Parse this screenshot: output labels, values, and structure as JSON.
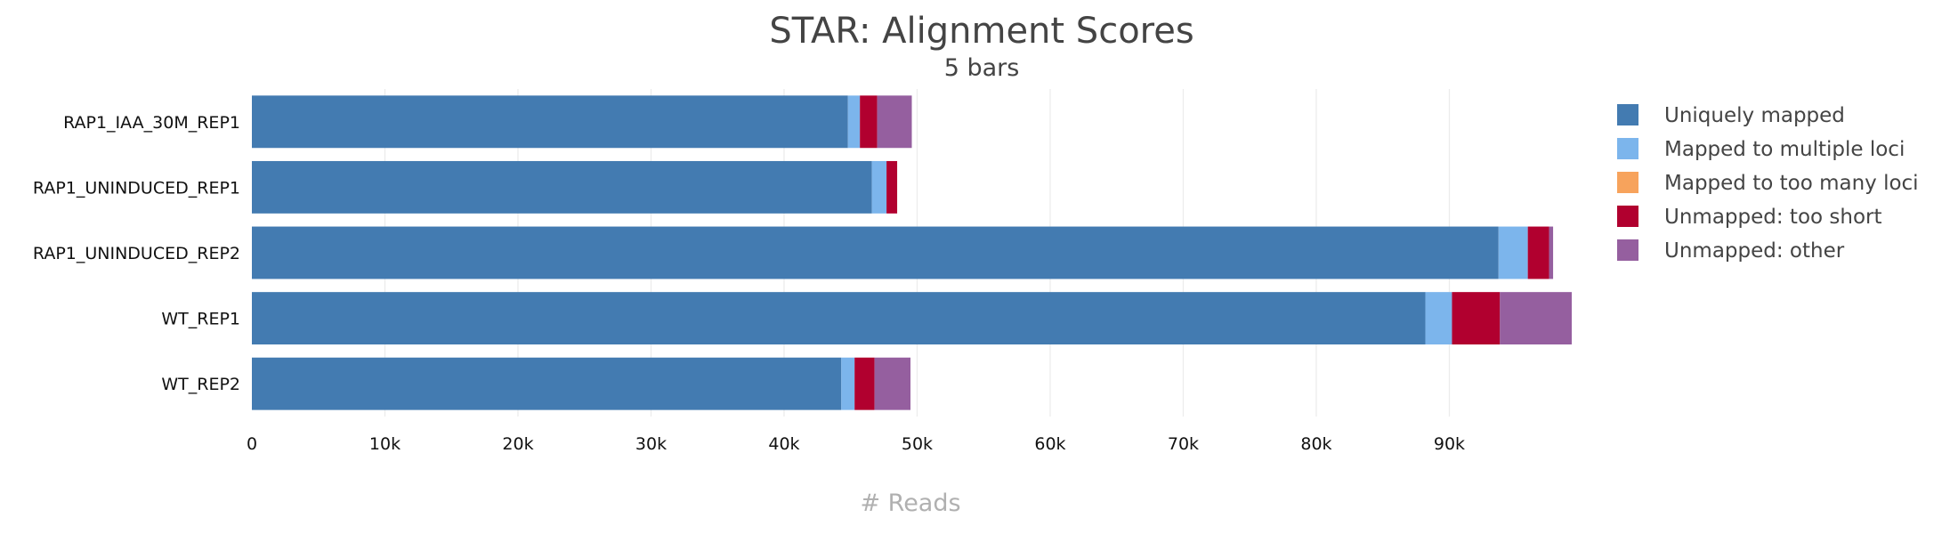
{
  "chart_data": {
    "type": "bar",
    "orientation": "horizontal",
    "stacked": true,
    "title": "STAR: Alignment Scores",
    "subtitle": "5 bars",
    "xlabel": "# Reads",
    "ylabel": "",
    "xlim": [
      0,
      99000
    ],
    "xticks": [
      0,
      10000,
      20000,
      30000,
      40000,
      50000,
      60000,
      70000,
      80000,
      90000
    ],
    "xtick_labels": [
      "0",
      "10k",
      "20k",
      "30k",
      "40k",
      "50k",
      "60k",
      "70k",
      "80k",
      "90k"
    ],
    "grid": "vertical",
    "legend_position": "right",
    "categories": [
      "RAP1_IAA_30M_REP1",
      "RAP1_UNINDUCED_REP1",
      "RAP1_UNINDUCED_REP2",
      "WT_REP1",
      "WT_REP2"
    ],
    "series": [
      {
        "name": "Uniquely mapped",
        "color": "#437bb1",
        "values": [
          44800,
          46600,
          93700,
          88200,
          44300
        ]
      },
      {
        "name": "Mapped to multiple loci",
        "color": "#7cb5ec",
        "values": [
          900,
          1100,
          2200,
          2000,
          1000
        ]
      },
      {
        "name": "Mapped to too many loci",
        "color": "#f7a35c",
        "values": [
          0,
          0,
          0,
          0,
          0
        ]
      },
      {
        "name": "Unmapped: too short",
        "color": "#b1002f",
        "values": [
          1300,
          800,
          1600,
          3600,
          1500
        ]
      },
      {
        "name": "Unmapped: other",
        "color": "#955f9f",
        "values": [
          2600,
          0,
          300,
          5400,
          2700
        ]
      }
    ]
  }
}
